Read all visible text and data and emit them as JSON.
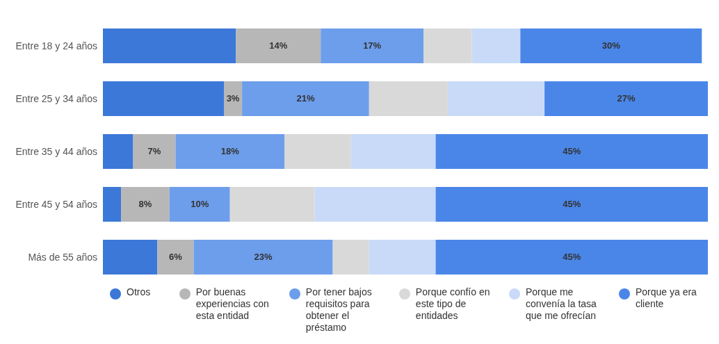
{
  "chart_data": {
    "type": "bar",
    "orientation": "horizontal",
    "stacked": true,
    "categories": [
      "Entre 18 y 24 años",
      "Entre 25 y 34 años",
      "Entre 35 y 44 años",
      "Entre 45 y 54 años",
      "Más de 55 años"
    ],
    "series": [
      {
        "name": "Otros",
        "color": "#3c78d8",
        "values": [
          22,
          20,
          5,
          3,
          9
        ],
        "value_labels": [
          null,
          null,
          null,
          null,
          null
        ]
      },
      {
        "name": "Por buenas experiencias con esta entidad",
        "color": "#b7b7b7",
        "values": [
          14,
          3,
          7,
          8,
          6
        ],
        "value_labels": [
          "14%",
          "3%",
          "7%",
          "8%",
          "6%"
        ]
      },
      {
        "name": "Por tener bajos requisitos para obtener el préstamo",
        "color": "#6d9eeb",
        "values": [
          17,
          21,
          18,
          10,
          23
        ],
        "value_labels": [
          "17%",
          "21%",
          "18%",
          "10%",
          "23%"
        ]
      },
      {
        "name": "Porque confío en este tipo de entidades",
        "color": "#d9d9d9",
        "values": [
          8,
          13,
          11,
          14,
          6
        ],
        "value_labels": [
          null,
          null,
          null,
          null,
          null
        ]
      },
      {
        "name": "Porque me convenía la tasa que me ofrecían",
        "color": "#c9daf8",
        "values": [
          8,
          16,
          14,
          20,
          11
        ],
        "value_labels": [
          null,
          null,
          null,
          null,
          null
        ]
      },
      {
        "name": "Porque ya era cliente",
        "color": "#4a86e8",
        "values": [
          30,
          27,
          45,
          45,
          45
        ],
        "value_labels": [
          "30%",
          "27%",
          "45%",
          "45%",
          "45%"
        ]
      }
    ],
    "legend": "bottom"
  }
}
